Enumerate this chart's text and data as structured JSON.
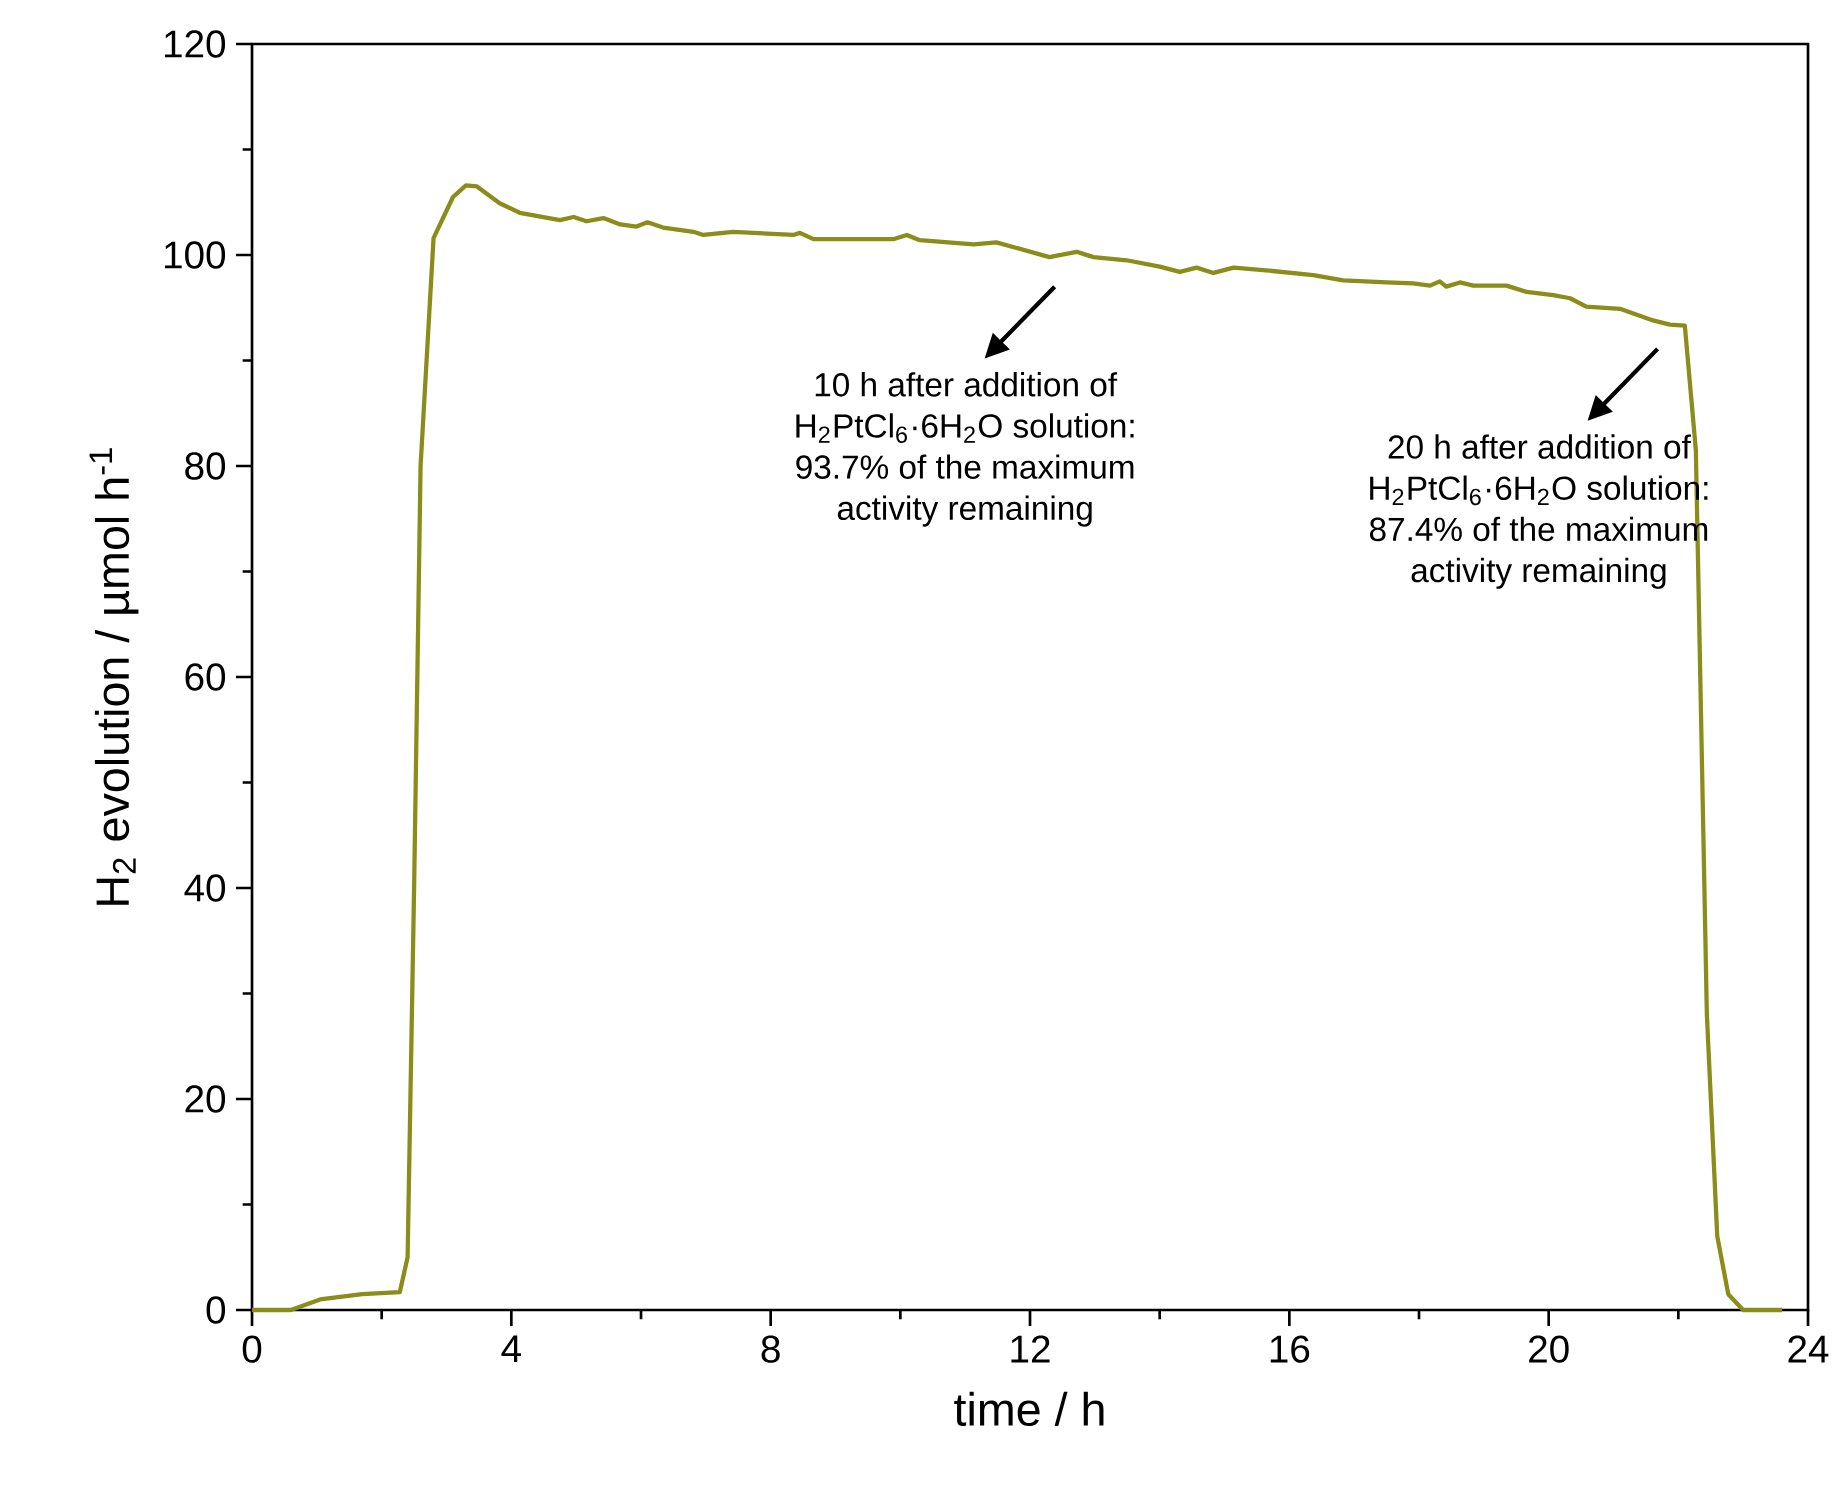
{
  "chart_data": {
    "type": "line",
    "xlabel": "time / h",
    "ylabel": "H$_{2}$ evolution / µmol h$^{-1}$",
    "xlim": [
      0,
      24
    ],
    "xticks": [
      0,
      4,
      8,
      12,
      16,
      20,
      24
    ],
    "ylim": [
      0,
      120
    ],
    "yticks": [
      0,
      20,
      40,
      60,
      80,
      100,
      120
    ],
    "grid": false,
    "marker": "none",
    "line_style": "solid",
    "series": [
      {
        "color": "#8c8c1a",
        "x": [
          0,
          0.6,
          1.05,
          1.7,
          2.28,
          2.4,
          2.5,
          2.6,
          2.8,
          3.1,
          3.3,
          3.47,
          3.82,
          4.13,
          4.75,
          4.96,
          5.16,
          5.42,
          5.68,
          5.93,
          6.1,
          6.34,
          6.81,
          6.96,
          7.42,
          8.35,
          8.45,
          8.66,
          9.89,
          10.1,
          10.3,
          11.13,
          11.48,
          12.3,
          12.72,
          12.98,
          13.49,
          14.0,
          14.31,
          14.57,
          14.83,
          15.14,
          15.55,
          16.37,
          16.83,
          17.5,
          17.91,
          18.17,
          18.32,
          18.42,
          18.63,
          18.84,
          19.35,
          19.66,
          20.07,
          20.33,
          20.58,
          21.1,
          21.61,
          21.87,
          22.1,
          22.27,
          22.44,
          22.6,
          22.77,
          23.0,
          23.6
        ],
        "values": [
          0,
          0,
          1,
          1.5,
          1.7,
          5,
          40,
          80,
          101.6,
          105.5,
          106.6,
          106.5,
          104.9,
          104.0,
          103.3,
          103.6,
          103.2,
          103.5,
          102.9,
          102.7,
          103.1,
          102.6,
          102.2,
          101.9,
          102.2,
          101.9,
          102.1,
          101.5,
          101.5,
          101.9,
          101.4,
          101.0,
          101.2,
          99.8,
          100.3,
          99.8,
          99.5,
          98.9,
          98.4,
          98.8,
          98.3,
          98.8,
          98.6,
          98.1,
          97.6,
          97.4,
          97.3,
          97.1,
          97.5,
          97.0,
          97.4,
          97.1,
          97.1,
          96.5,
          96.2,
          95.9,
          95.1,
          94.9,
          93.8,
          93.4,
          93.3,
          81.5,
          28,
          7,
          1.5,
          0,
          0
        ]
      }
    ],
    "annotations": [
      "10 h after addition of",
      "H$_{2}$PtCl$_{6}$·6H$_{2}$O solution:",
      "93.7% of the maximum",
      "activity remaining",
      "20 h after addition of",
      "H$_{2}$PtCl$_{6}$·6H$_{2}$O solution:",
      "87.4% of the maximum",
      "activity remaining"
    ]
  }
}
